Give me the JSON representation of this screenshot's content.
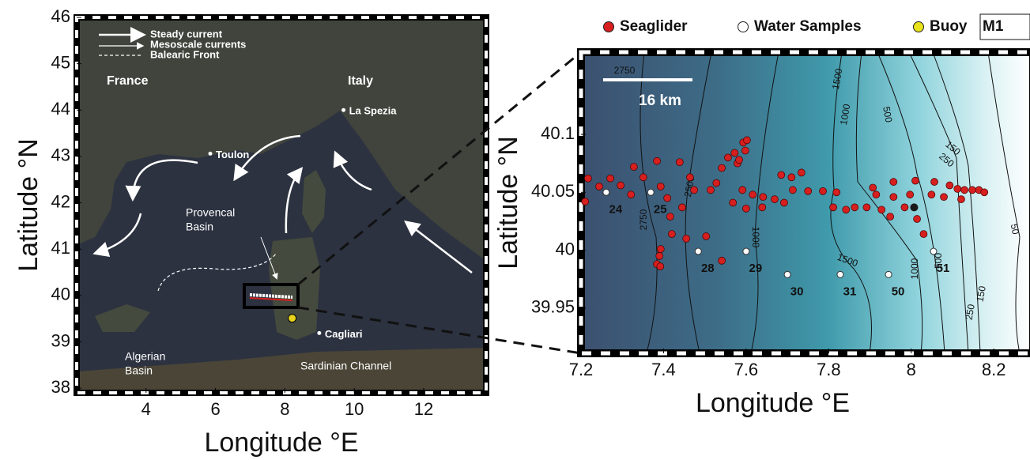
{
  "map_left": {
    "xlabel": "Longitude °E",
    "ylabel": "Latitude °N",
    "xlim": [
      2,
      13.8
    ],
    "ylim": [
      37.9,
      46
    ],
    "xticks": [
      4,
      6,
      8,
      10,
      12
    ],
    "yticks": [
      38,
      39,
      40,
      41,
      42,
      43,
      44,
      45,
      46
    ],
    "legend": [
      "Steady current",
      "Mesoscale currents",
      "Balearic Front"
    ],
    "countries": [
      "France",
      "Italy"
    ],
    "regions": [
      [
        "Provencal",
        "Basin"
      ],
      [
        "Algerian",
        "Basin"
      ],
      [
        "Sardinian Channel"
      ]
    ],
    "places": [
      {
        "name": "La Spezia",
        "lon": 9.69,
        "lat": 44.0
      },
      {
        "name": "Toulon",
        "lon": 5.85,
        "lat": 43.06
      },
      {
        "name": "Cagliari",
        "lon": 8.99,
        "lat": 39.19
      }
    ],
    "buoy": {
      "lon": 8.21,
      "lat": 39.51,
      "color": "#e8d21a"
    }
  },
  "map_right": {
    "xlabel": "Longitude °E",
    "ylabel": "Latitude °N",
    "xlim": [
      7.2,
      8.28
    ],
    "ylim": [
      39.911,
      40.171
    ],
    "xticks": [
      7.2,
      7.4,
      7.6,
      7.8,
      8,
      8.2
    ],
    "yticks": [
      39.95,
      40,
      40.05,
      40.1
    ],
    "scale_bar": "16 km",
    "contour_labels": [
      "2750",
      "1500",
      "1000",
      "500",
      "150",
      "250",
      "2750",
      "2500",
      "1000",
      "1500",
      "1000",
      "500",
      "250",
      "150",
      "50"
    ],
    "seaglider": {
      "name": "Seaglider",
      "color": "#d61f1f",
      "lon": [
        7.21,
        7.217,
        7.244,
        7.271,
        7.296,
        7.321,
        7.328,
        7.351,
        7.384,
        7.393,
        7.409,
        7.416,
        7.42,
        7.393,
        7.39,
        7.384,
        7.392,
        7.439,
        7.464,
        7.474,
        7.445,
        7.455,
        7.503,
        7.514,
        7.528,
        7.541,
        7.556,
        7.572,
        7.579,
        7.593,
        7.602,
        7.598,
        7.583,
        7.591,
        7.616,
        7.641,
        7.669,
        7.692,
        7.568,
        7.541,
        7.6,
        7.639,
        7.685,
        7.71,
        7.734,
        7.713,
        7.75,
        7.786,
        7.819,
        7.842,
        7.811,
        7.863,
        7.892,
        7.928,
        7.949,
        7.984,
        8.014,
        8.03,
        7.907,
        7.957,
        8.01,
        8.056,
        8.093,
        8.129,
        8.164,
        8.177,
        8.079,
        8.121,
        8.049,
        7.997,
        7.957,
        7.915,
        8.112,
        8.148
      ],
      "lat": [
        40.042,
        40.062,
        40.055,
        40.062,
        40.056,
        40.048,
        40.072,
        40.063,
        40.077,
        40.055,
        40.045,
        40.029,
        40.014,
        40.001,
        39.995,
        39.988,
        39.986,
        40.076,
        40.063,
        40.052,
        40.037,
        40.01,
        40.012,
        40.052,
        40.058,
        40.071,
        40.08,
        40.084,
        40.075,
        40.093,
        40.095,
        40.086,
        40.078,
        40.052,
        40.048,
        40.046,
        40.044,
        40.041,
        40.041,
        39.991,
        40.036,
        40.037,
        40.065,
        40.063,
        40.067,
        40.052,
        40.051,
        40.051,
        40.05,
        40.035,
        40.037,
        40.037,
        40.037,
        40.035,
        40.029,
        40.037,
        40.027,
        40.014,
        40.054,
        40.059,
        40.06,
        40.059,
        40.056,
        40.052,
        40.052,
        40.05,
        40.046,
        40.044,
        40.048,
        40.048,
        40.046,
        40.048,
        40.053,
        40.052
      ]
    },
    "water_samples": {
      "name": "Water Samples",
      "color": "#ffffff",
      "labels": [
        "24",
        "25",
        "28",
        "29",
        "30",
        "31",
        "50",
        "51"
      ],
      "lon": [
        7.261,
        7.369,
        7.484,
        7.6,
        7.7,
        7.828,
        7.945,
        8.054
      ],
      "lat": [
        40.05,
        40.05,
        39.999,
        39.999,
        39.979,
        39.979,
        39.979,
        39.999
      ]
    },
    "buoy": {
      "name": "Buoy",
      "label": "M1",
      "color": "#e8e21a",
      "map_color": "#1a1a1a",
      "lon": 8.007,
      "lat": 40.037
    }
  }
}
